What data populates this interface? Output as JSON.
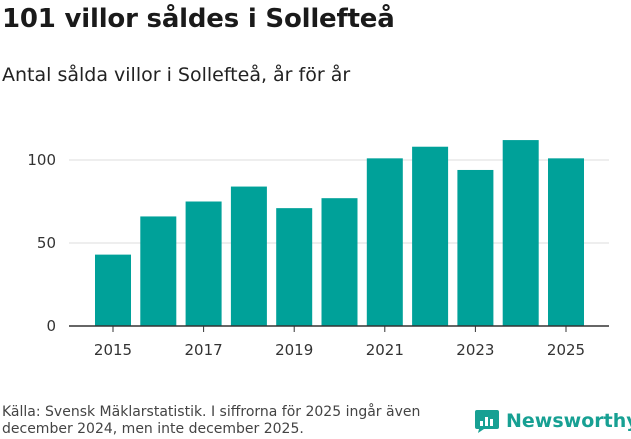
{
  "title": "101 villor såldes i Sollefteå",
  "subtitle": "Antal sålda villor i Sollefteå, år för år",
  "source": "Källa: Svensk Mäklarstatistik. I siffrorna för 2025 ingår även december 2024, men inte december 2025.",
  "brand": {
    "name": "Newsworthy",
    "icon": "newsworthy-logo-icon",
    "color": "#17a093"
  },
  "colors": {
    "bar": "#00a199",
    "grid": "#dddddd",
    "axis": "#333333"
  },
  "chart_data": {
    "type": "bar",
    "title": "Antal sålda villor i Sollefteå, år för år",
    "xlabel": "",
    "ylabel": "",
    "categories": [
      "2015",
      "2016",
      "2017",
      "2018",
      "2019",
      "2020",
      "2021",
      "2022",
      "2023",
      "2024",
      "2025"
    ],
    "values": [
      43,
      66,
      75,
      84,
      71,
      77,
      101,
      108,
      94,
      112,
      101
    ],
    "x_tick_labels": [
      "2015",
      "2017",
      "2019",
      "2021",
      "2023",
      "2025"
    ],
    "y_ticks": [
      "0",
      "50",
      "100"
    ],
    "ylim": [
      0,
      120
    ],
    "grid": true
  }
}
